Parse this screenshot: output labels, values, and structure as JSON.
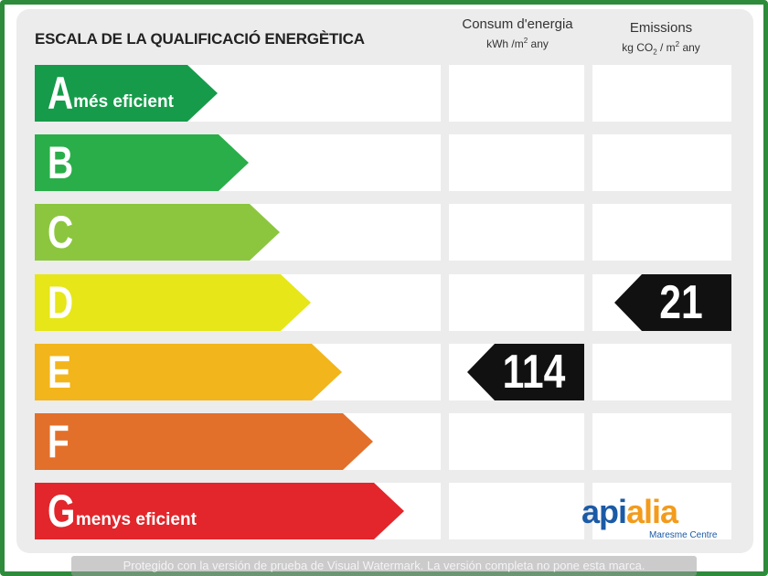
{
  "title": "ESCALA DE LA QUALIFICACIÓ ENERGÈTICA",
  "columns": {
    "consumption": {
      "label": "Consum d'energia",
      "unit_pre": "kWh /m",
      "unit_sup": "2",
      "unit_post": " any"
    },
    "emissions": {
      "label": "Emissions",
      "unit_pre": "kg CO",
      "unit_sub": "2",
      "unit_mid": " / m",
      "unit_sup": "2",
      "unit_post": " any"
    }
  },
  "ratings": [
    {
      "letter": "A",
      "desc": "més eficient",
      "color": "#169b4a"
    },
    {
      "letter": "B",
      "desc": "",
      "color": "#2aae4a"
    },
    {
      "letter": "C",
      "desc": "",
      "color": "#8cc63f"
    },
    {
      "letter": "D",
      "desc": "",
      "color": "#e6e619"
    },
    {
      "letter": "E",
      "desc": "",
      "color": "#f2b51b"
    },
    {
      "letter": "F",
      "desc": "",
      "color": "#e2702a"
    },
    {
      "letter": "G",
      "desc": "menys eficient",
      "color": "#e2262b"
    }
  ],
  "consumption_value": {
    "value": "114",
    "rating": "E"
  },
  "emissions_value": {
    "value": "21",
    "rating": "D"
  },
  "logo": {
    "part1": "api",
    "part2": "alia",
    "tagline": "Maresme Centre"
  },
  "watermark": "Protegido con la versión de prueba de Visual Watermark. La versión completa no pone esta marca."
}
